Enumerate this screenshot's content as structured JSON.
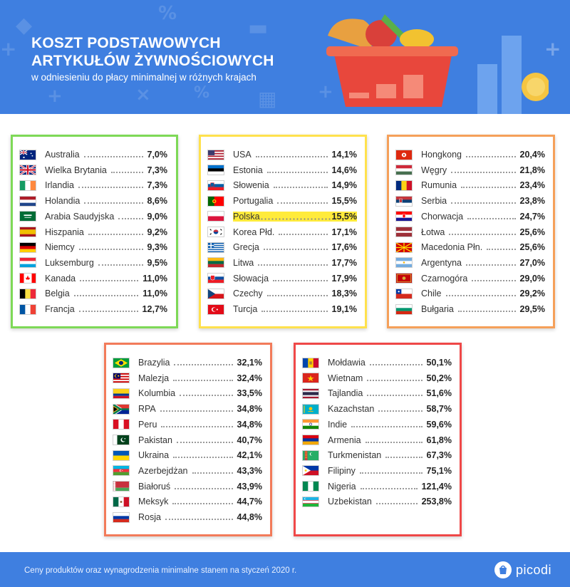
{
  "header": {
    "title_line1": "KOSZT PODSTAWOWYCH",
    "title_line2": "ARTYKUŁÓW ŻYWNOŚCIOWYCH",
    "subtitle": "w odniesieniu do płacy minimalnej w różnych krajach"
  },
  "chart_data": {
    "type": "table",
    "highlight": "Polska",
    "groups": [
      {
        "border_color": "#7ed957",
        "rows": [
          {
            "country": "Australia",
            "value": "7,0%",
            "flag": "australia-flag"
          },
          {
            "country": "Wielka Brytania",
            "value": "7,3%",
            "flag": "uk-flag"
          },
          {
            "country": "Irlandia",
            "value": "7,3%",
            "flag": "ireland-flag"
          },
          {
            "country": "Holandia",
            "value": "8,6%",
            "flag": "netherlands-flag"
          },
          {
            "country": "Arabia Saudyjska",
            "value": "9,0%",
            "flag": "saudi-arabia-flag"
          },
          {
            "country": "Hiszpania",
            "value": "9,2%",
            "flag": "spain-flag"
          },
          {
            "country": "Niemcy",
            "value": "9,3%",
            "flag": "germany-flag"
          },
          {
            "country": "Luksemburg",
            "value": "9,5%",
            "flag": "luxembourg-flag"
          },
          {
            "country": "Kanada",
            "value": "11,0%",
            "flag": "canada-flag"
          },
          {
            "country": "Belgia",
            "value": "11,0%",
            "flag": "belgium-flag"
          },
          {
            "country": "Francja",
            "value": "12,7%",
            "flag": "france-flag"
          }
        ]
      },
      {
        "border_color": "#ffe14d",
        "rows": [
          {
            "country": "USA",
            "value": "14,1%",
            "flag": "usa-flag"
          },
          {
            "country": "Estonia",
            "value": "14,6%",
            "flag": "estonia-flag"
          },
          {
            "country": "Słowenia",
            "value": "14,9%",
            "flag": "slovenia-flag"
          },
          {
            "country": "Portugalia",
            "value": "15,5%",
            "flag": "portugal-flag"
          },
          {
            "country": "Polska",
            "value": "15,5%",
            "flag": "poland-flag"
          },
          {
            "country": "Korea Płd.",
            "value": "17,1%",
            "flag": "south-korea-flag"
          },
          {
            "country": "Grecja",
            "value": "17,6%",
            "flag": "greece-flag"
          },
          {
            "country": "Litwa",
            "value": "17,7%",
            "flag": "lithuania-flag"
          },
          {
            "country": "Słowacja",
            "value": "17,9%",
            "flag": "slovakia-flag"
          },
          {
            "country": "Czechy",
            "value": "18,3%",
            "flag": "czechia-flag"
          },
          {
            "country": "Turcja",
            "value": "19,1%",
            "flag": "turkey-flag"
          }
        ]
      },
      {
        "border_color": "#f5a05a",
        "rows": [
          {
            "country": "Hongkong",
            "value": "20,4%",
            "flag": "hong-kong-flag"
          },
          {
            "country": "Węgry",
            "value": "21,8%",
            "flag": "hungary-flag"
          },
          {
            "country": "Rumunia",
            "value": "23,4%",
            "flag": "romania-flag"
          },
          {
            "country": "Serbia",
            "value": "23,8%",
            "flag": "serbia-flag"
          },
          {
            "country": "Chorwacja",
            "value": "24,7%",
            "flag": "croatia-flag"
          },
          {
            "country": "Łotwa",
            "value": "25,6%",
            "flag": "latvia-flag"
          },
          {
            "country": "Macedonia Płn.",
            "value": "25,6%",
            "flag": "north-macedonia-flag"
          },
          {
            "country": "Argentyna",
            "value": "27,0%",
            "flag": "argentina-flag"
          },
          {
            "country": "Czarnogóra",
            "value": "29,0%",
            "flag": "montenegro-flag"
          },
          {
            "country": "Chile",
            "value": "29,2%",
            "flag": "chile-flag"
          },
          {
            "country": "Bułgaria",
            "value": "29,5%",
            "flag": "bulgaria-flag"
          }
        ]
      },
      {
        "border_color": "#f27b5a",
        "rows": [
          {
            "country": "Brazylia",
            "value": "32,1%",
            "flag": "brazil-flag"
          },
          {
            "country": "Malezja",
            "value": "32,4%",
            "flag": "malaysia-flag"
          },
          {
            "country": "Kolumbia",
            "value": "33,5%",
            "flag": "colombia-flag"
          },
          {
            "country": "RPA",
            "value": "34,8%",
            "flag": "south-africa-flag"
          },
          {
            "country": "Peru",
            "value": "34,8%",
            "flag": "peru-flag"
          },
          {
            "country": "Pakistan",
            "value": "40,7%",
            "flag": "pakistan-flag"
          },
          {
            "country": "Ukraina",
            "value": "42,1%",
            "flag": "ukraine-flag"
          },
          {
            "country": "Azerbejdżan",
            "value": "43,3%",
            "flag": "azerbaijan-flag"
          },
          {
            "country": "Białoruś",
            "value": "43,9%",
            "flag": "belarus-flag"
          },
          {
            "country": "Meksyk",
            "value": "44,7%",
            "flag": "mexico-flag"
          },
          {
            "country": "Rosja",
            "value": "44,8%",
            "flag": "russia-flag"
          }
        ]
      },
      {
        "border_color": "#ef4848",
        "rows": [
          {
            "country": "Mołdawia",
            "value": "50,1%",
            "flag": "moldova-flag"
          },
          {
            "country": "Wietnam",
            "value": "50,2%",
            "flag": "vietnam-flag"
          },
          {
            "country": "Tajlandia",
            "value": "51,6%",
            "flag": "thailand-flag"
          },
          {
            "country": "Kazachstan",
            "value": "58,7%",
            "flag": "kazakhstan-flag"
          },
          {
            "country": "Indie",
            "value": "59,6%",
            "flag": "india-flag"
          },
          {
            "country": "Armenia",
            "value": "61,8%",
            "flag": "armenia-flag"
          },
          {
            "country": "Turkmenistan",
            "value": "67,3%",
            "flag": "turkmenistan-flag"
          },
          {
            "country": "Filipiny",
            "value": "75,1%",
            "flag": "philippines-flag"
          },
          {
            "country": "Nigeria",
            "value": "121,4%",
            "flag": "nigeria-flag"
          },
          {
            "country": "Uzbekistan",
            "value": "253,8%",
            "flag": "uzbekistan-flag"
          }
        ]
      }
    ]
  },
  "footer": {
    "note": "Ceny produktów oraz wynagrodzenia minimalne stanem na styczeń 2020 r.",
    "logo_text": "picodi"
  },
  "colors": {
    "header_bg": "#3f7fe0",
    "highlight": "#ffeb3b"
  }
}
